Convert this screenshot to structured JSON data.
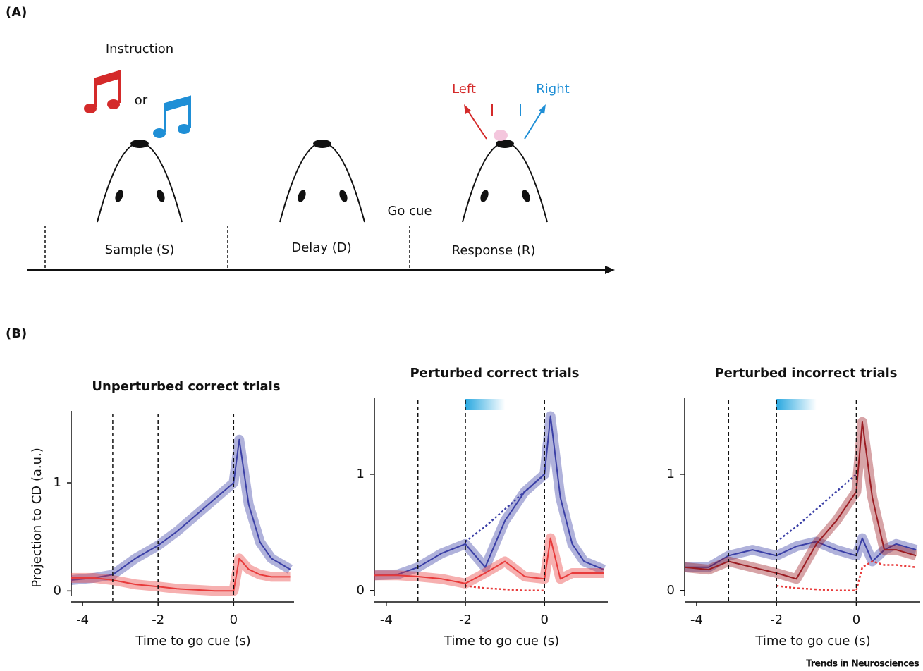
{
  "panel_labels": [
    "(A)",
    "(B)"
  ],
  "panel_a": {
    "instruction": "Instruction",
    "or": "or",
    "left": "Left",
    "right": "Right",
    "go_cue": "Go cue",
    "epochs": [
      "Sample (S)",
      "Delay (D)",
      "Response (R)"
    ]
  },
  "credit": "Trends in Neurosciences",
  "chart_data": [
    {
      "type": "line",
      "title": "Unperturbed correct trials",
      "x_label": "Time to go cue (s)",
      "y_label": "Projection to CD (a.u.)",
      "x": [
        -4.3,
        -3.7,
        -3.2,
        -2.6,
        -2,
        -1.5,
        -1,
        -0.5,
        0,
        0.15,
        0.4,
        0.7,
        1,
        1.5
      ],
      "series": [
        {
          "color": "#3a3fa6",
          "values": [
            0.1,
            0.12,
            0.15,
            0.3,
            0.42,
            0.55,
            0.7,
            0.85,
            1.0,
            1.4,
            0.8,
            0.45,
            0.3,
            0.2
          ]
        },
        {
          "color": "#e83a3a",
          "values": [
            0.12,
            0.12,
            0.1,
            0.06,
            0.04,
            0.02,
            0.01,
            0,
            0,
            0.3,
            0.2,
            0.15,
            0.13,
            0.13
          ]
        }
      ],
      "event_lines": [
        -3.2,
        -2,
        0
      ],
      "xlim": [
        -4.3,
        1.6
      ],
      "xticks": [
        -4,
        -2,
        0
      ],
      "ylim": [
        -0.05,
        1.6
      ],
      "yticks": [
        0,
        1
      ]
    },
    {
      "type": "line",
      "title": "Perturbed correct trials",
      "x_label": "Time to go cue (s)",
      "x": [
        -4.3,
        -3.7,
        -3.2,
        -2.6,
        -2,
        -1.5,
        -1,
        -0.5,
        0,
        0.15,
        0.4,
        0.7,
        1,
        1.5
      ],
      "series": [
        {
          "color": "#3a3fa6",
          "values": [
            0.13,
            0.14,
            0.2,
            0.32,
            0.4,
            0.2,
            0.6,
            0.85,
            1.0,
            1.5,
            0.8,
            0.4,
            0.25,
            0.18
          ]
        },
        {
          "color": "#3a3fa6",
          "dash": true,
          "values": [
            null,
            null,
            null,
            null,
            0.42,
            0.55,
            0.7,
            0.85,
            1.0,
            null,
            null,
            null,
            null,
            null
          ]
        },
        {
          "color": "#e83a3a",
          "values": [
            0.13,
            0.13,
            0.12,
            0.1,
            0.06,
            0.15,
            0.25,
            0.12,
            0.1,
            0.45,
            0.1,
            0.15,
            0.15,
            0.15
          ]
        },
        {
          "color": "#e83a3a",
          "dash": true,
          "values": [
            null,
            null,
            null,
            null,
            0.04,
            0.02,
            0.01,
            0,
            0,
            null,
            null,
            null,
            null,
            null
          ]
        }
      ],
      "event_lines": [
        -3.2,
        -2,
        0
      ],
      "stim": [
        -2,
        -1
      ],
      "xlim": [
        -4.3,
        1.6
      ],
      "xticks": [
        -4,
        -2,
        0
      ],
      "ylim": [
        -0.05,
        1.6
      ],
      "yticks": [
        0,
        1
      ]
    },
    {
      "type": "line",
      "title": "Perturbed incorrect trials",
      "x_label": "Time to go cue (s)",
      "x": [
        -4.3,
        -3.7,
        -3.2,
        -2.6,
        -2,
        -1.5,
        -1,
        -0.5,
        0,
        0.15,
        0.4,
        0.7,
        1,
        1.5
      ],
      "series": [
        {
          "color": "#3a3fa6",
          "values": [
            0.2,
            0.2,
            0.3,
            0.35,
            0.3,
            0.38,
            0.42,
            0.35,
            0.3,
            0.45,
            0.25,
            0.35,
            0.4,
            0.35
          ]
        },
        {
          "color": "#3a3fa6",
          "dash": true,
          "values": [
            null,
            null,
            null,
            null,
            0.42,
            0.55,
            0.7,
            0.85,
            1.0,
            null,
            null,
            null,
            null,
            null
          ]
        },
        {
          "color": "#9b1c22",
          "values": [
            0.2,
            0.18,
            0.25,
            0.2,
            0.15,
            0.1,
            0.4,
            0.6,
            0.85,
            1.45,
            0.8,
            0.35,
            0.35,
            0.3
          ]
        },
        {
          "color": "#e83a3a",
          "dash": true,
          "values": [
            null,
            null,
            null,
            null,
            0.04,
            0.02,
            0.01,
            0,
            0,
            0.2,
            0.25,
            0.22,
            0.22,
            0.2
          ]
        }
      ],
      "event_lines": [
        -3.2,
        -2,
        0
      ],
      "stim": [
        -2,
        -1
      ],
      "xlim": [
        -4.3,
        1.6
      ],
      "xticks": [
        -4,
        -2,
        0
      ],
      "ylim": [
        -0.05,
        1.6
      ],
      "yticks": [
        0,
        1
      ]
    }
  ]
}
